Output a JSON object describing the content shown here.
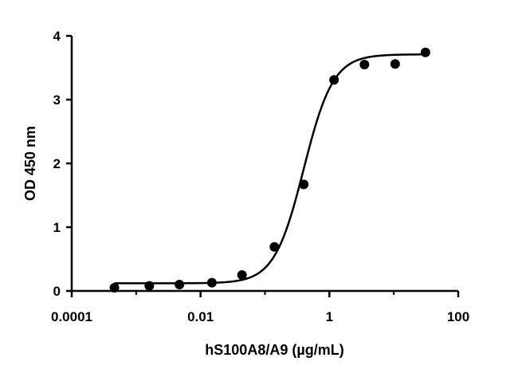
{
  "chart_data": {
    "type": "scatter",
    "title": "",
    "xlabel": "hS100A8/A9 (µg/mL)",
    "ylabel": "OD 450 nm",
    "xscale": "log",
    "xlim": [
      0.0001,
      100
    ],
    "ylim": [
      0,
      4
    ],
    "x_ticks": [
      0.0001,
      0.01,
      1,
      100
    ],
    "x_tick_labels": [
      "0.0001",
      "0.01",
      "1",
      "100"
    ],
    "y_ticks": [
      0,
      1,
      2,
      3,
      4
    ],
    "y_tick_labels": [
      "0",
      "1",
      "2",
      "3",
      "4"
    ],
    "grid": false,
    "series": [
      {
        "points": [
          {
            "x": 0.00046,
            "y": 0.05
          },
          {
            "x": 0.0016,
            "y": 0.08
          },
          {
            "x": 0.0047,
            "y": 0.1
          },
          {
            "x": 0.015,
            "y": 0.13
          },
          {
            "x": 0.044,
            "y": 0.25
          },
          {
            "x": 0.14,
            "y": 0.69
          },
          {
            "x": 0.4,
            "y": 1.67
          },
          {
            "x": 1.18,
            "y": 3.31
          },
          {
            "x": 3.5,
            "y": 3.55
          },
          {
            "x": 10.5,
            "y": 3.56
          },
          {
            "x": 31,
            "y": 3.74
          }
        ],
        "fit": {
          "model": "4PL",
          "bottom": 0.12,
          "top": 3.71,
          "ec50": 0.4,
          "hill": 1.9
        },
        "color": "#000000"
      }
    ]
  }
}
